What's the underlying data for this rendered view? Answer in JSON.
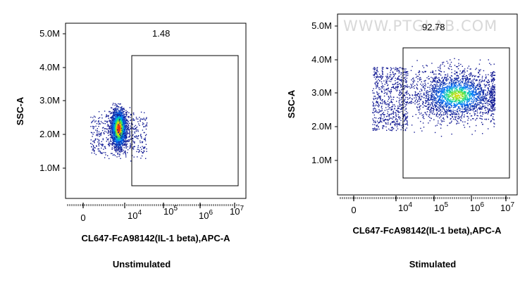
{
  "watermark": "WWW.PTGLAB.COM",
  "chart_data": [
    {
      "type": "scatter",
      "caption": "Unstimulated",
      "xlabel": "CL647-FcA98142(IL-1 beta),APC-A",
      "ylabel": "SSC-A",
      "y_ticks": [
        "1.0M",
        "2.0M",
        "3.0M",
        "4.0M",
        "5.0M"
      ],
      "x_ticks": [
        {
          "base": "0",
          "exp": ""
        },
        {
          "base": "10",
          "exp": "4"
        },
        {
          "base": "10",
          "exp": "5"
        },
        {
          "base": "10",
          "exp": "6"
        },
        {
          "base": "10",
          "exp": "7"
        }
      ],
      "gate": {
        "label": "1.48",
        "percent": 1.48
      },
      "population": {
        "x_center_decade": 3.8,
        "y_center_M": 2.15,
        "shape": "dense narrow vertical cluster"
      }
    },
    {
      "type": "scatter",
      "caption": "Stimulated",
      "xlabel": "CL647-FcA98142(IL-1 beta),APC-A",
      "ylabel": "SSC-A",
      "y_ticks": [
        "1.0M",
        "2.0M",
        "3.0M",
        "4.0M",
        "5.0M"
      ],
      "x_ticks": [
        {
          "base": "0",
          "exp": ""
        },
        {
          "base": "10",
          "exp": "4"
        },
        {
          "base": "10",
          "exp": "5"
        },
        {
          "base": "10",
          "exp": "6"
        },
        {
          "base": "10",
          "exp": "7"
        }
      ],
      "gate": {
        "label": "92.78",
        "percent": 92.78
      },
      "population": {
        "x_center_decade": 5.6,
        "y_center_M": 2.8,
        "shape": "broad cloud"
      }
    }
  ]
}
